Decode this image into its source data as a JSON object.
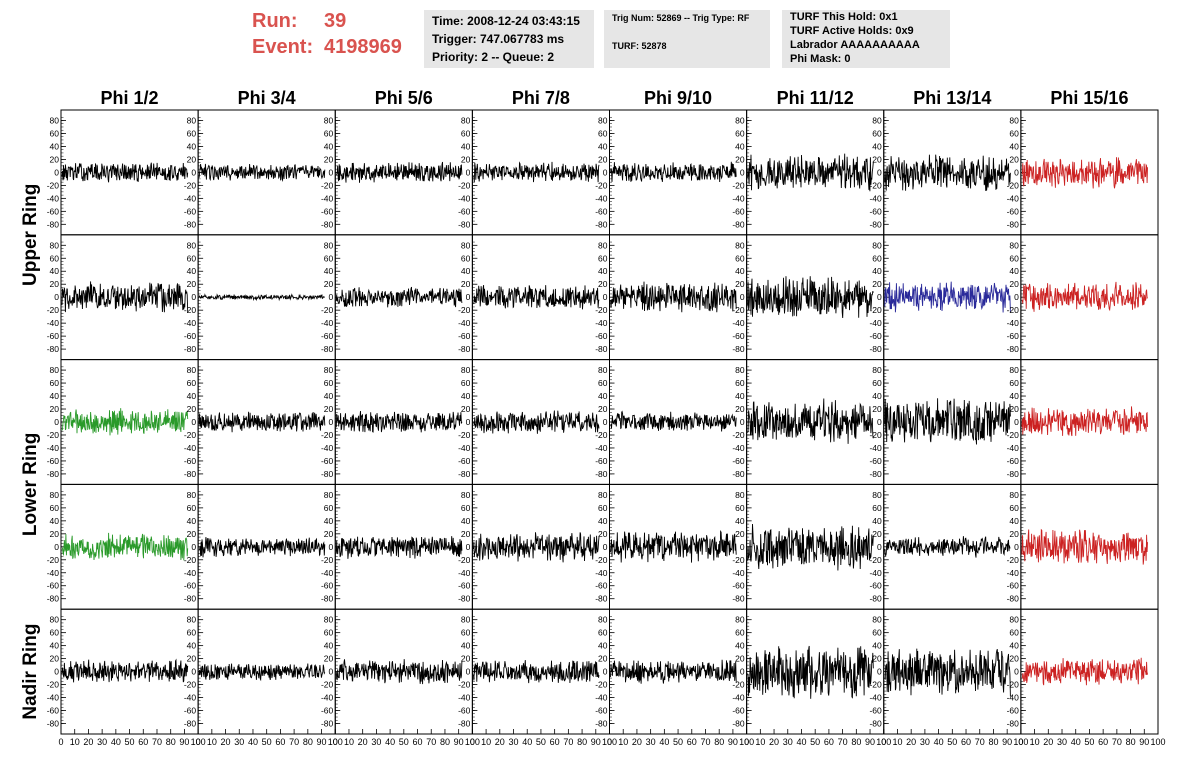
{
  "run": {
    "run_label": "Run:",
    "run_value": "39",
    "event_label": "Event:",
    "event_value": "4198969"
  },
  "info_time": {
    "time": "Time: 2008-12-24 03:43:15",
    "trigger": "Trigger: 747.067783 ms",
    "priority": "Priority: 2 -- Queue: 2"
  },
  "info_trig": {
    "trig": "Trig Num: 52869 -- Trig Type: RF",
    "turf": "TURF: 52878"
  },
  "info_turf": {
    "hold": "TURF This Hold: 0x1",
    "active": "TURF Active Holds: 0x9",
    "labrador": "Labrador AAAAAAAAAA",
    "phimask": "Phi Mask: 0"
  },
  "column_titles": [
    "Phi 1/2",
    "Phi 3/4",
    "Phi 5/6",
    "Phi 7/8",
    "Phi 9/10",
    "Phi 11/12",
    "Phi 13/14",
    "Phi 15/16"
  ],
  "row_titles": [
    {
      "label": "Upper Ring",
      "rows": [
        0,
        1
      ]
    },
    {
      "label": "Lower Ring",
      "rows": [
        2,
        3
      ]
    },
    {
      "label": "Nadir Ring",
      "rows": [
        4,
        4
      ]
    }
  ],
  "colors": {
    "title_red": "#d9534f",
    "trace_black": "#000000",
    "trace_red": "#cc2222",
    "trace_green": "#2a9a2a",
    "trace_blue": "#2a2a9a",
    "box_bg": "#e6e6e6"
  },
  "chart_data": {
    "type": "line",
    "grid": false,
    "xlim": [
      0,
      100
    ],
    "ylim": [
      -90,
      90
    ],
    "y_ticks": [
      -80,
      -60,
      -40,
      -20,
      0,
      20,
      40,
      60,
      80
    ],
    "x_tick_labels": [
      "0",
      "10",
      "20",
      "30",
      "40",
      "50",
      "60",
      "70",
      "80",
      "90",
      "100"
    ],
    "panels": [
      {
        "row": 0,
        "col": 0,
        "color": "black",
        "amp": 12
      },
      {
        "row": 0,
        "col": 1,
        "color": "black",
        "amp": 10
      },
      {
        "row": 0,
        "col": 2,
        "color": "black",
        "amp": 12
      },
      {
        "row": 0,
        "col": 3,
        "color": "black",
        "amp": 12
      },
      {
        "row": 0,
        "col": 4,
        "color": "black",
        "amp": 12
      },
      {
        "row": 0,
        "col": 5,
        "color": "black",
        "amp": 22
      },
      {
        "row": 0,
        "col": 6,
        "color": "black",
        "amp": 22
      },
      {
        "row": 0,
        "col": 7,
        "color": "red",
        "amp": 18
      },
      {
        "row": 1,
        "col": 0,
        "color": "black",
        "amp": 18
      },
      {
        "row": 1,
        "col": 1,
        "color": "black",
        "amp": 3
      },
      {
        "row": 1,
        "col": 2,
        "color": "black",
        "amp": 12
      },
      {
        "row": 1,
        "col": 3,
        "color": "black",
        "amp": 14
      },
      {
        "row": 1,
        "col": 4,
        "color": "black",
        "amp": 18
      },
      {
        "row": 1,
        "col": 5,
        "color": "black",
        "amp": 26
      },
      {
        "row": 1,
        "col": 6,
        "color": "blue",
        "amp": 18
      },
      {
        "row": 1,
        "col": 7,
        "color": "red",
        "amp": 18
      },
      {
        "row": 2,
        "col": 0,
        "color": "green",
        "amp": 16
      },
      {
        "row": 2,
        "col": 1,
        "color": "black",
        "amp": 12
      },
      {
        "row": 2,
        "col": 2,
        "color": "black",
        "amp": 14
      },
      {
        "row": 2,
        "col": 3,
        "color": "black",
        "amp": 14
      },
      {
        "row": 2,
        "col": 4,
        "color": "black",
        "amp": 12
      },
      {
        "row": 2,
        "col": 5,
        "color": "black",
        "amp": 26
      },
      {
        "row": 2,
        "col": 6,
        "color": "black",
        "amp": 28
      },
      {
        "row": 2,
        "col": 7,
        "color": "red",
        "amp": 18
      },
      {
        "row": 3,
        "col": 0,
        "color": "green",
        "amp": 16
      },
      {
        "row": 3,
        "col": 1,
        "color": "black",
        "amp": 12
      },
      {
        "row": 3,
        "col": 2,
        "color": "black",
        "amp": 14
      },
      {
        "row": 3,
        "col": 3,
        "color": "black",
        "amp": 18
      },
      {
        "row": 3,
        "col": 4,
        "color": "black",
        "amp": 18
      },
      {
        "row": 3,
        "col": 5,
        "color": "black",
        "amp": 28
      },
      {
        "row": 3,
        "col": 6,
        "color": "black",
        "amp": 12
      },
      {
        "row": 3,
        "col": 7,
        "color": "red",
        "amp": 22
      },
      {
        "row": 4,
        "col": 0,
        "color": "black",
        "amp": 14
      },
      {
        "row": 4,
        "col": 1,
        "color": "black",
        "amp": 10
      },
      {
        "row": 4,
        "col": 2,
        "color": "black",
        "amp": 14
      },
      {
        "row": 4,
        "col": 3,
        "color": "black",
        "amp": 14
      },
      {
        "row": 4,
        "col": 4,
        "color": "black",
        "amp": 14
      },
      {
        "row": 4,
        "col": 5,
        "color": "black",
        "amp": 32
      },
      {
        "row": 4,
        "col": 6,
        "color": "black",
        "amp": 28
      },
      {
        "row": 4,
        "col": 7,
        "color": "red",
        "amp": 16
      }
    ]
  }
}
